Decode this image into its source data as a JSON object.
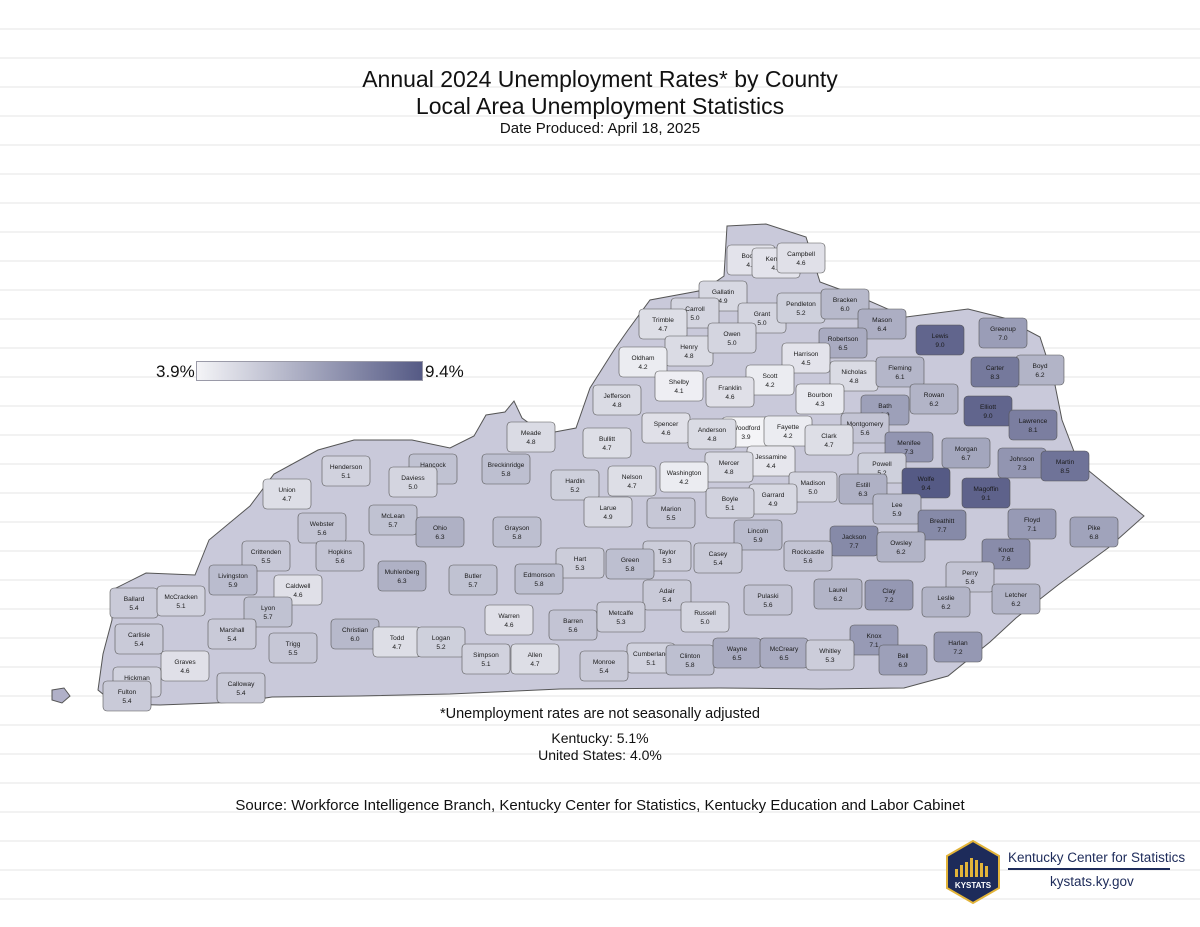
{
  "title": {
    "line1": "Annual 2024 Unemployment Rates* by County",
    "line2": "Local Area Unemployment Statistics",
    "date": "Date Produced: April 18, 2025"
  },
  "legend": {
    "min_label": "3.9%",
    "max_label": "9.4%",
    "min": 3.9,
    "max": 9.4,
    "color_low": "#f4f4f7",
    "color_high": "#555a85"
  },
  "counties": [
    {
      "name": "Boone",
      "value": 4.5
    },
    {
      "name": "Kenton",
      "value": 4.5
    },
    {
      "name": "Campbell",
      "value": 4.6
    },
    {
      "name": "Gallatin",
      "value": 4.9
    },
    {
      "name": "Carroll",
      "value": 5.0
    },
    {
      "name": "Trimble",
      "value": 4.7
    },
    {
      "name": "Grant",
      "value": 5.0
    },
    {
      "name": "Pendleton",
      "value": 5.2
    },
    {
      "name": "Bracken",
      "value": 6.0
    },
    {
      "name": "Mason",
      "value": 6.4
    },
    {
      "name": "Lewis",
      "value": 9.0
    },
    {
      "name": "Greenup",
      "value": 7.0
    },
    {
      "name": "Boyd",
      "value": 6.2
    },
    {
      "name": "Robertson",
      "value": 6.5
    },
    {
      "name": "Henry",
      "value": 4.8
    },
    {
      "name": "Owen",
      "value": 5.0
    },
    {
      "name": "Harrison",
      "value": 4.5
    },
    {
      "name": "Oldham",
      "value": 4.2
    },
    {
      "name": "Scott",
      "value": 4.2
    },
    {
      "name": "Nicholas",
      "value": 4.8
    },
    {
      "name": "Fleming",
      "value": 6.1
    },
    {
      "name": "Carter",
      "value": 8.3
    },
    {
      "name": "Shelby",
      "value": 4.1
    },
    {
      "name": "Franklin",
      "value": 4.6
    },
    {
      "name": "Bourbon",
      "value": 4.3
    },
    {
      "name": "Jefferson",
      "value": 4.8
    },
    {
      "name": "Rowan",
      "value": 6.2
    },
    {
      "name": "Elliott",
      "value": 9.0
    },
    {
      "name": "Lawrence",
      "value": 8.1
    },
    {
      "name": "Bath",
      "value": 6.9
    },
    {
      "name": "Woodford",
      "value": 3.9
    },
    {
      "name": "Fayette",
      "value": 4.2
    },
    {
      "name": "Spencer",
      "value": 4.6
    },
    {
      "name": "Anderson",
      "value": 4.8
    },
    {
      "name": "Montgomery",
      "value": 5.6
    },
    {
      "name": "Meade",
      "value": 4.8
    },
    {
      "name": "Clark",
      "value": 4.7
    },
    {
      "name": "Bullitt",
      "value": 4.7
    },
    {
      "name": "Menifee",
      "value": 7.3
    },
    {
      "name": "Morgan",
      "value": 6.7
    },
    {
      "name": "Johnson",
      "value": 7.3
    },
    {
      "name": "Martin",
      "value": 8.5
    },
    {
      "name": "Jessamine",
      "value": 4.4
    },
    {
      "name": "Mercer",
      "value": 4.8
    },
    {
      "name": "Henderson",
      "value": 5.1
    },
    {
      "name": "Hancock",
      "value": 5.7
    },
    {
      "name": "Breckinridge",
      "value": 5.8
    },
    {
      "name": "Daviess",
      "value": 5.0
    },
    {
      "name": "Hardin",
      "value": 5.2
    },
    {
      "name": "Nelson",
      "value": 4.7
    },
    {
      "name": "Washington",
      "value": 4.2
    },
    {
      "name": "Powell",
      "value": 5.2
    },
    {
      "name": "Madison",
      "value": 5.0
    },
    {
      "name": "Estill",
      "value": 6.3
    },
    {
      "name": "Wolfe",
      "value": 9.4
    },
    {
      "name": "Magoffin",
      "value": 9.1
    },
    {
      "name": "Garrard",
      "value": 4.9
    },
    {
      "name": "Union",
      "value": 4.7
    },
    {
      "name": "Boyle",
      "value": 5.1
    },
    {
      "name": "Lee",
      "value": 5.9
    },
    {
      "name": "Larue",
      "value": 4.9
    },
    {
      "name": "Marion",
      "value": 5.5
    },
    {
      "name": "McLean",
      "value": 5.7
    },
    {
      "name": "Webster",
      "value": 5.6
    },
    {
      "name": "Ohio",
      "value": 6.3
    },
    {
      "name": "Breathitt",
      "value": 7.7
    },
    {
      "name": "Floyd",
      "value": 7.1
    },
    {
      "name": "Pike",
      "value": 6.8
    },
    {
      "name": "Grayson",
      "value": 5.8
    },
    {
      "name": "Lincoln",
      "value": 5.9
    },
    {
      "name": "Jackson",
      "value": 7.7
    },
    {
      "name": "Owsley",
      "value": 6.2
    },
    {
      "name": "Crittenden",
      "value": 5.5
    },
    {
      "name": "Hopkins",
      "value": 5.6
    },
    {
      "name": "Taylor",
      "value": 5.3
    },
    {
      "name": "Casey",
      "value": 5.4
    },
    {
      "name": "Rockcastle",
      "value": 5.6
    },
    {
      "name": "Knott",
      "value": 7.6
    },
    {
      "name": "Hart",
      "value": 5.3
    },
    {
      "name": "Green",
      "value": 5.8
    },
    {
      "name": "Perry",
      "value": 5.6
    },
    {
      "name": "Livingston",
      "value": 5.9
    },
    {
      "name": "Muhlenberg",
      "value": 6.3
    },
    {
      "name": "Butler",
      "value": 5.7
    },
    {
      "name": "Edmonson",
      "value": 5.8
    },
    {
      "name": "Caldwell",
      "value": 4.6
    },
    {
      "name": "Adair",
      "value": 5.4
    },
    {
      "name": "Laurel",
      "value": 6.2
    },
    {
      "name": "Clay",
      "value": 7.2
    },
    {
      "name": "Letcher",
      "value": 6.2
    },
    {
      "name": "Ballard",
      "value": 5.4
    },
    {
      "name": "McCracken",
      "value": 5.1
    },
    {
      "name": "Lyon",
      "value": 5.7
    },
    {
      "name": "Pulaski",
      "value": 5.6
    },
    {
      "name": "Leslie",
      "value": 6.2
    },
    {
      "name": "Marshall",
      "value": 5.4
    },
    {
      "name": "Carlisle",
      "value": 5.4
    },
    {
      "name": "Warren",
      "value": 4.6
    },
    {
      "name": "Barren",
      "value": 5.6
    },
    {
      "name": "Metcalfe",
      "value": 5.3
    },
    {
      "name": "Russell",
      "value": 5.0
    },
    {
      "name": "Christian",
      "value": 6.0
    },
    {
      "name": "Trigg",
      "value": 5.5
    },
    {
      "name": "Todd",
      "value": 4.7
    },
    {
      "name": "Logan",
      "value": 5.2
    },
    {
      "name": "Graves",
      "value": 4.6
    },
    {
      "name": "Knox",
      "value": 7.1
    },
    {
      "name": "Harlan",
      "value": 7.2
    },
    {
      "name": "Allen",
      "value": 4.7
    },
    {
      "name": "Simpson",
      "value": 5.1
    },
    {
      "name": "Cumberland",
      "value": 5.1
    },
    {
      "name": "Clinton",
      "value": 5.8
    },
    {
      "name": "Wayne",
      "value": 6.5
    },
    {
      "name": "McCreary",
      "value": 6.5
    },
    {
      "name": "Whitley",
      "value": 5.3
    },
    {
      "name": "Bell",
      "value": 6.9
    },
    {
      "name": "Hickman",
      "value": 5.1
    },
    {
      "name": "Monroe",
      "value": 5.4
    },
    {
      "name": "Calloway",
      "value": 5.4
    },
    {
      "name": "Fulton",
      "value": 5.4
    }
  ],
  "notes": {
    "footnote": "*Unemployment rates are not seasonally adjusted",
    "kentucky": "Kentucky: 5.1%",
    "us": "United States: 4.0%"
  },
  "source": "Source: Workforce Intelligence Branch, Kentucky Center for Statistics, Kentucky Education and Labor Cabinet",
  "branding": {
    "logo_text": "KYSTATS",
    "name": "Kentucky Center for Statistics",
    "url": "kystats.ky.gov",
    "navy": "#1d2b5a",
    "gold": "#e2b43a"
  }
}
